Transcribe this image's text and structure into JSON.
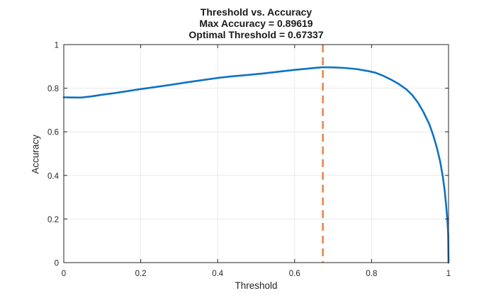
{
  "chart_data": {
    "type": "line",
    "title_lines": [
      "Threshold vs. Accuracy",
      "Max Accuracy = 0.89619",
      "Optimal Threshold = 0.67337"
    ],
    "xlabel": "Threshold",
    "ylabel": "Accuracy",
    "xlim": [
      0,
      1
    ],
    "ylim": [
      0,
      1
    ],
    "xticks": [
      0,
      0.2,
      0.4,
      0.6,
      0.8,
      1
    ],
    "xtick_labels": [
      "0",
      "0.2",
      "0.4",
      "0.6",
      "0.8",
      "1"
    ],
    "yticks": [
      0,
      0.2,
      0.4,
      0.6,
      0.8,
      1
    ],
    "ytick_labels": [
      "0",
      "0.2",
      "0.4",
      "0.6",
      "0.8",
      "1"
    ],
    "grid": true,
    "legend": "none",
    "max_accuracy": 0.89619,
    "optimal_threshold": 0.67337,
    "series": [
      {
        "name": "accuracy-curve",
        "kind": "line",
        "color": "#0e73c1",
        "width": 2.6,
        "points": [
          [
            0.0,
            0.758
          ],
          [
            0.02,
            0.7575
          ],
          [
            0.045,
            0.757
          ],
          [
            0.07,
            0.762
          ],
          [
            0.1,
            0.77
          ],
          [
            0.13,
            0.777
          ],
          [
            0.16,
            0.785
          ],
          [
            0.2,
            0.796
          ],
          [
            0.24,
            0.806
          ],
          [
            0.28,
            0.816
          ],
          [
            0.32,
            0.827
          ],
          [
            0.36,
            0.837
          ],
          [
            0.4,
            0.847
          ],
          [
            0.44,
            0.855
          ],
          [
            0.48,
            0.861
          ],
          [
            0.52,
            0.868
          ],
          [
            0.56,
            0.876
          ],
          [
            0.6,
            0.884
          ],
          [
            0.63,
            0.889
          ],
          [
            0.66,
            0.894
          ],
          [
            0.67337,
            0.896
          ],
          [
            0.7,
            0.8955
          ],
          [
            0.73,
            0.893
          ],
          [
            0.76,
            0.888
          ],
          [
            0.79,
            0.879
          ],
          [
            0.81,
            0.871
          ],
          [
            0.83,
            0.857
          ],
          [
            0.85,
            0.84
          ],
          [
            0.87,
            0.82
          ],
          [
            0.89,
            0.795
          ],
          [
            0.905,
            0.77
          ],
          [
            0.92,
            0.735
          ],
          [
            0.935,
            0.69
          ],
          [
            0.95,
            0.635
          ],
          [
            0.96,
            0.585
          ],
          [
            0.97,
            0.525
          ],
          [
            0.978,
            0.465
          ],
          [
            0.985,
            0.395
          ],
          [
            0.99,
            0.33
          ],
          [
            0.994,
            0.26
          ],
          [
            0.997,
            0.195
          ],
          [
            0.999,
            0.13
          ],
          [
            1.0,
            0.0
          ]
        ]
      },
      {
        "name": "optimal-threshold-line",
        "kind": "vline",
        "x": 0.67337,
        "color": "#e8874e",
        "width": 2.6,
        "dash": "11 7"
      }
    ],
    "colors": {
      "curve": "#0e73c1",
      "threshold_line": "#e8874e",
      "grid": "#e9e9e9",
      "axis_box": "#262626",
      "title_text": "#1a1a1a",
      "tick_text": "#262626"
    }
  }
}
